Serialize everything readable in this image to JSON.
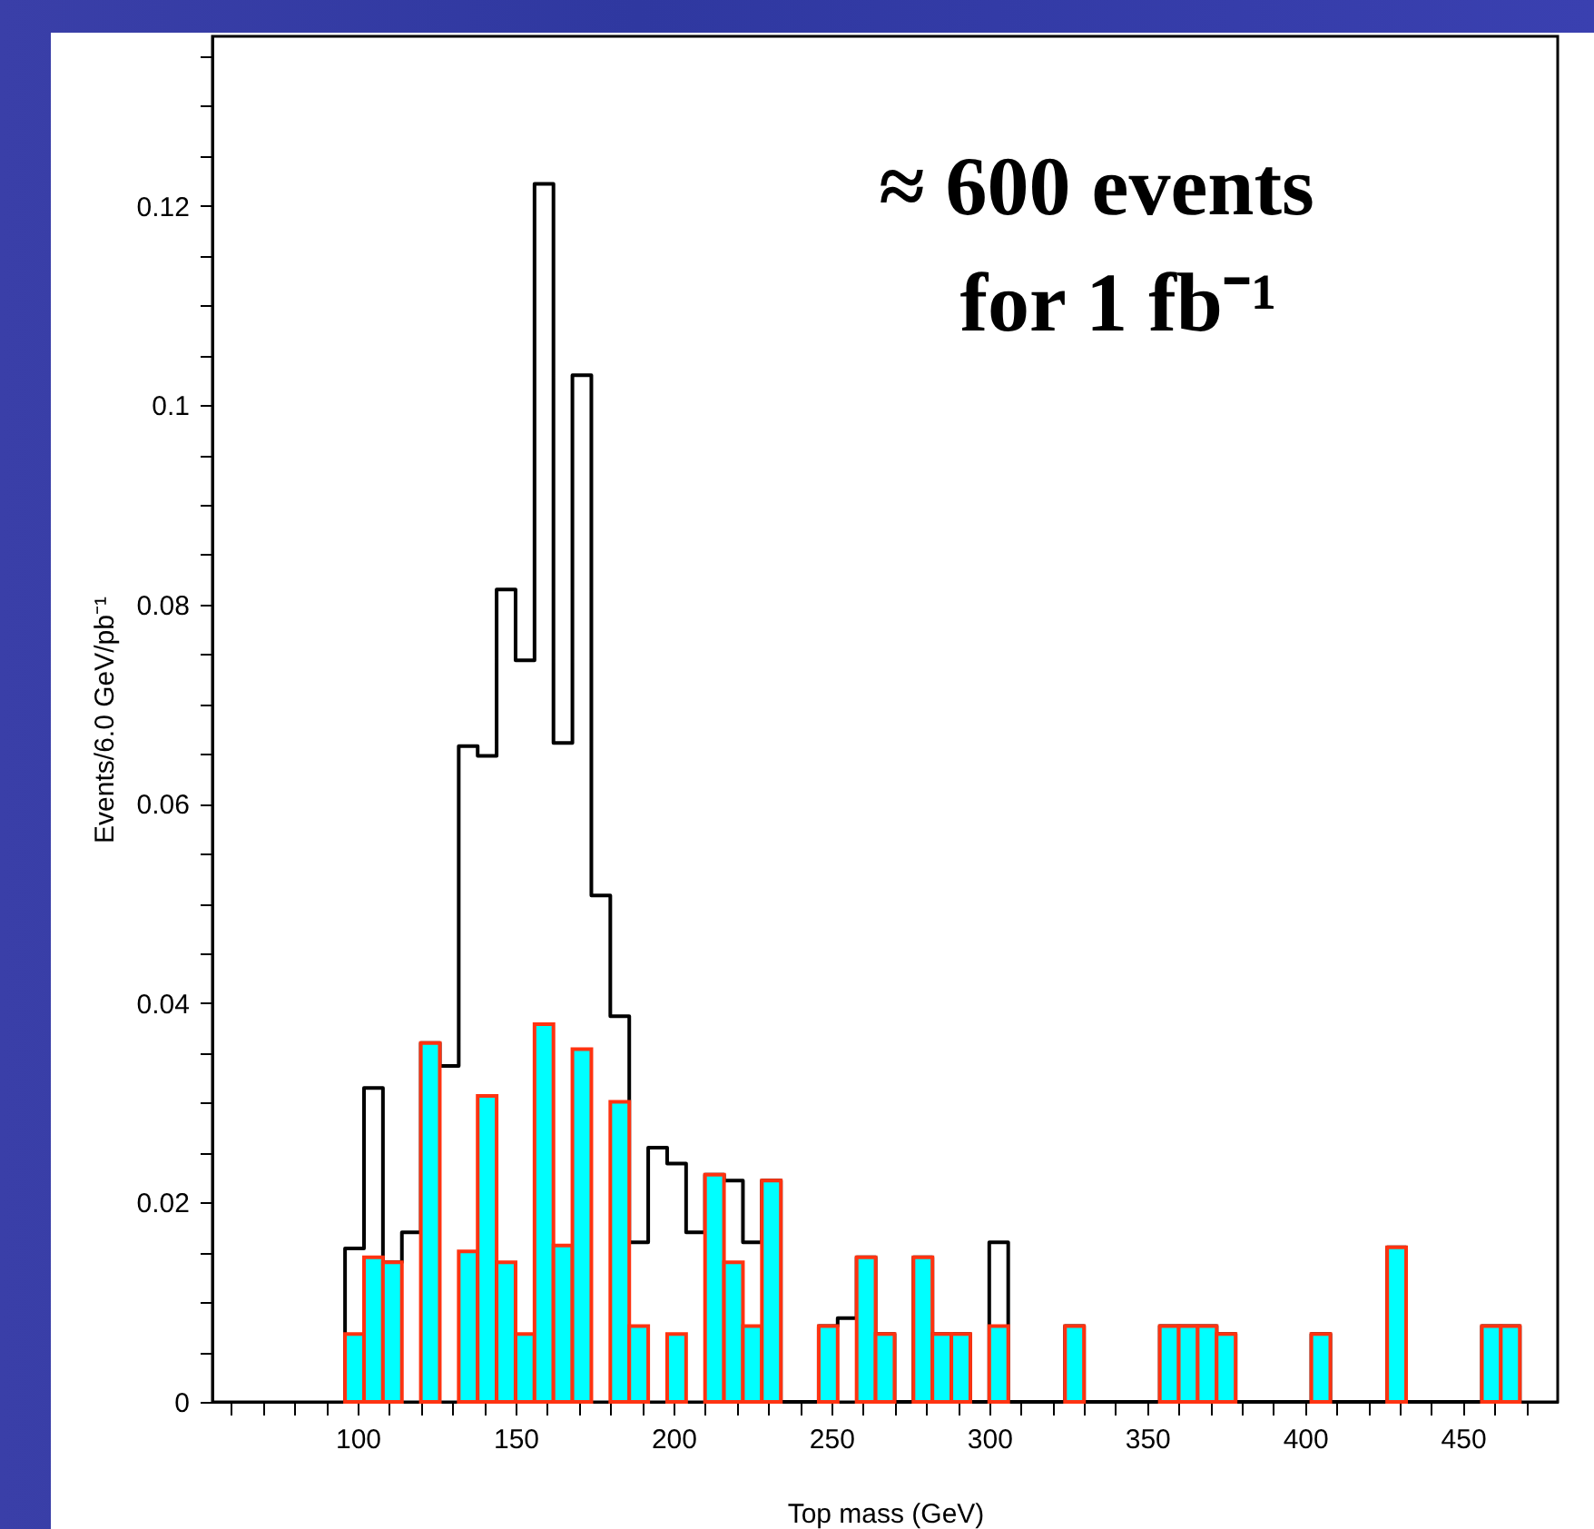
{
  "chart_data": {
    "type": "histogram",
    "xlabel": "Top mass (GeV)",
    "ylabel": "Events/6.0 GeV/pb⁻¹",
    "annotations": [
      "≈ 600 events",
      "for 1 fb⁻¹"
    ],
    "xlim": [
      54,
      480
    ],
    "xticks": [
      {
        "value": 60,
        "label": null
      },
      {
        "value": 70,
        "label": null
      },
      {
        "value": 80,
        "label": null
      },
      {
        "value": 90,
        "label": null
      },
      100,
      {
        "value": 110,
        "label": null
      },
      {
        "value": 120,
        "label": null
      },
      {
        "value": 130,
        "label": null
      },
      {
        "value": 140,
        "label": null
      },
      150,
      {
        "value": 160,
        "label": null
      },
      {
        "value": 170,
        "label": null
      },
      {
        "value": 180,
        "label": null
      },
      {
        "value": 190,
        "label": null
      },
      200,
      {
        "value": 210,
        "label": null
      },
      {
        "value": 220,
        "label": null
      },
      {
        "value": 230,
        "label": null
      },
      {
        "value": 240,
        "label": null
      },
      250,
      {
        "value": 260,
        "label": null
      },
      {
        "value": 270,
        "label": null
      },
      {
        "value": 280,
        "label": null
      },
      {
        "value": 290,
        "label": null
      },
      300,
      {
        "value": 310,
        "label": null
      },
      {
        "value": 320,
        "label": null
      },
      {
        "value": 330,
        "label": null
      },
      {
        "value": 340,
        "label": null
      },
      350,
      {
        "value": 360,
        "label": null
      },
      {
        "value": 370,
        "label": null
      },
      {
        "value": 380,
        "label": null
      },
      {
        "value": 390,
        "label": null
      },
      400,
      {
        "value": 410,
        "label": null
      },
      {
        "value": 420,
        "label": null
      },
      {
        "value": 430,
        "label": null
      },
      {
        "value": 440,
        "label": null
      },
      450,
      {
        "value": 460,
        "label": null
      },
      {
        "value": 470,
        "label": null
      }
    ],
    "ylim": [
      0,
      0.137
    ],
    "yticks": [
      0,
      {
        "value": 0.005,
        "label": null
      },
      {
        "value": 0.01,
        "label": null
      },
      {
        "value": 0.015,
        "label": null
      },
      0.02,
      {
        "value": 0.025,
        "label": null
      },
      {
        "value": 0.03,
        "label": null
      },
      {
        "value": 0.035,
        "label": null
      },
      0.04,
      {
        "value": 0.045,
        "label": null
      },
      {
        "value": 0.05,
        "label": null
      },
      {
        "value": 0.055,
        "label": null
      },
      0.06,
      {
        "value": 0.065,
        "label": null
      },
      {
        "value": 0.07,
        "label": null
      },
      {
        "value": 0.075,
        "label": null
      },
      0.08,
      {
        "value": 0.085,
        "label": null
      },
      {
        "value": 0.09,
        "label": null
      },
      {
        "value": 0.095,
        "label": null
      },
      0.1,
      {
        "value": 0.105,
        "label": null
      },
      {
        "value": 0.11,
        "label": null
      },
      {
        "value": 0.115,
        "label": null
      },
      0.12,
      {
        "value": 0.125,
        "label": null
      },
      {
        "value": 0.13,
        "label": null
      },
      {
        "value": 0.135,
        "label": null
      }
    ],
    "bins": [
      96,
      102,
      108,
      114,
      120,
      126,
      132,
      138,
      144,
      150,
      156,
      162,
      168,
      174,
      180,
      186,
      192,
      198,
      204,
      210,
      216,
      222,
      228,
      234,
      240,
      246,
      252,
      258,
      264,
      270,
      276,
      282,
      288,
      294,
      300,
      306,
      312,
      318,
      324,
      330,
      336,
      342,
      348,
      354,
      360,
      366,
      372,
      378,
      384,
      390,
      396,
      402,
      408,
      414,
      420,
      426,
      432,
      438,
      444,
      450,
      456,
      462,
      468
    ],
    "series": [
      {
        "color": "#000000",
        "values": [
          0.0154,
          0.0315,
          0.014,
          0.017,
          0.036,
          0.0337,
          0.0658,
          0.0648,
          0.0815,
          0.0744,
          0.1222,
          0.0661,
          0.103,
          0.0508,
          0.0387,
          0.016,
          0.0255,
          0.0239,
          0.017,
          0.0228,
          0.0222,
          0.016,
          0.0222,
          0,
          0,
          0.0076,
          0.0084,
          0.0145,
          0.0068,
          0,
          0.0145,
          0.0068,
          0.0068,
          0,
          0.016,
          0,
          0,
          0,
          0.0076,
          0,
          0,
          0,
          0,
          0.0076,
          0.0076,
          0.0076,
          0.0068,
          0,
          0,
          0,
          0,
          0.0068,
          0,
          0,
          0,
          0.0155,
          0,
          0,
          0,
          0,
          0.0076,
          0.0076
        ]
      },
      {
        "color": "#00ffff",
        "values": [
          0.0068,
          0.0145,
          0.014,
          0,
          0.036,
          0,
          0.0151,
          0.0307,
          0.014,
          0.0068,
          0.0379,
          0.0157,
          0.0354,
          0,
          0.0301,
          0.0076,
          0,
          0.0068,
          0,
          0.0228,
          0.014,
          0.0076,
          0.0222,
          0,
          0,
          0.0076,
          0,
          0.0145,
          0.0068,
          0,
          0.0145,
          0.0068,
          0.0068,
          0,
          0.0076,
          0,
          0,
          0,
          0.0076,
          0,
          0,
          0,
          0,
          0.0076,
          0.0076,
          0.0076,
          0.0068,
          0,
          0,
          0,
          0,
          0.0068,
          0,
          0,
          0,
          0.0155,
          0,
          0,
          0,
          0,
          0.0076,
          0.0076
        ]
      }
    ]
  }
}
